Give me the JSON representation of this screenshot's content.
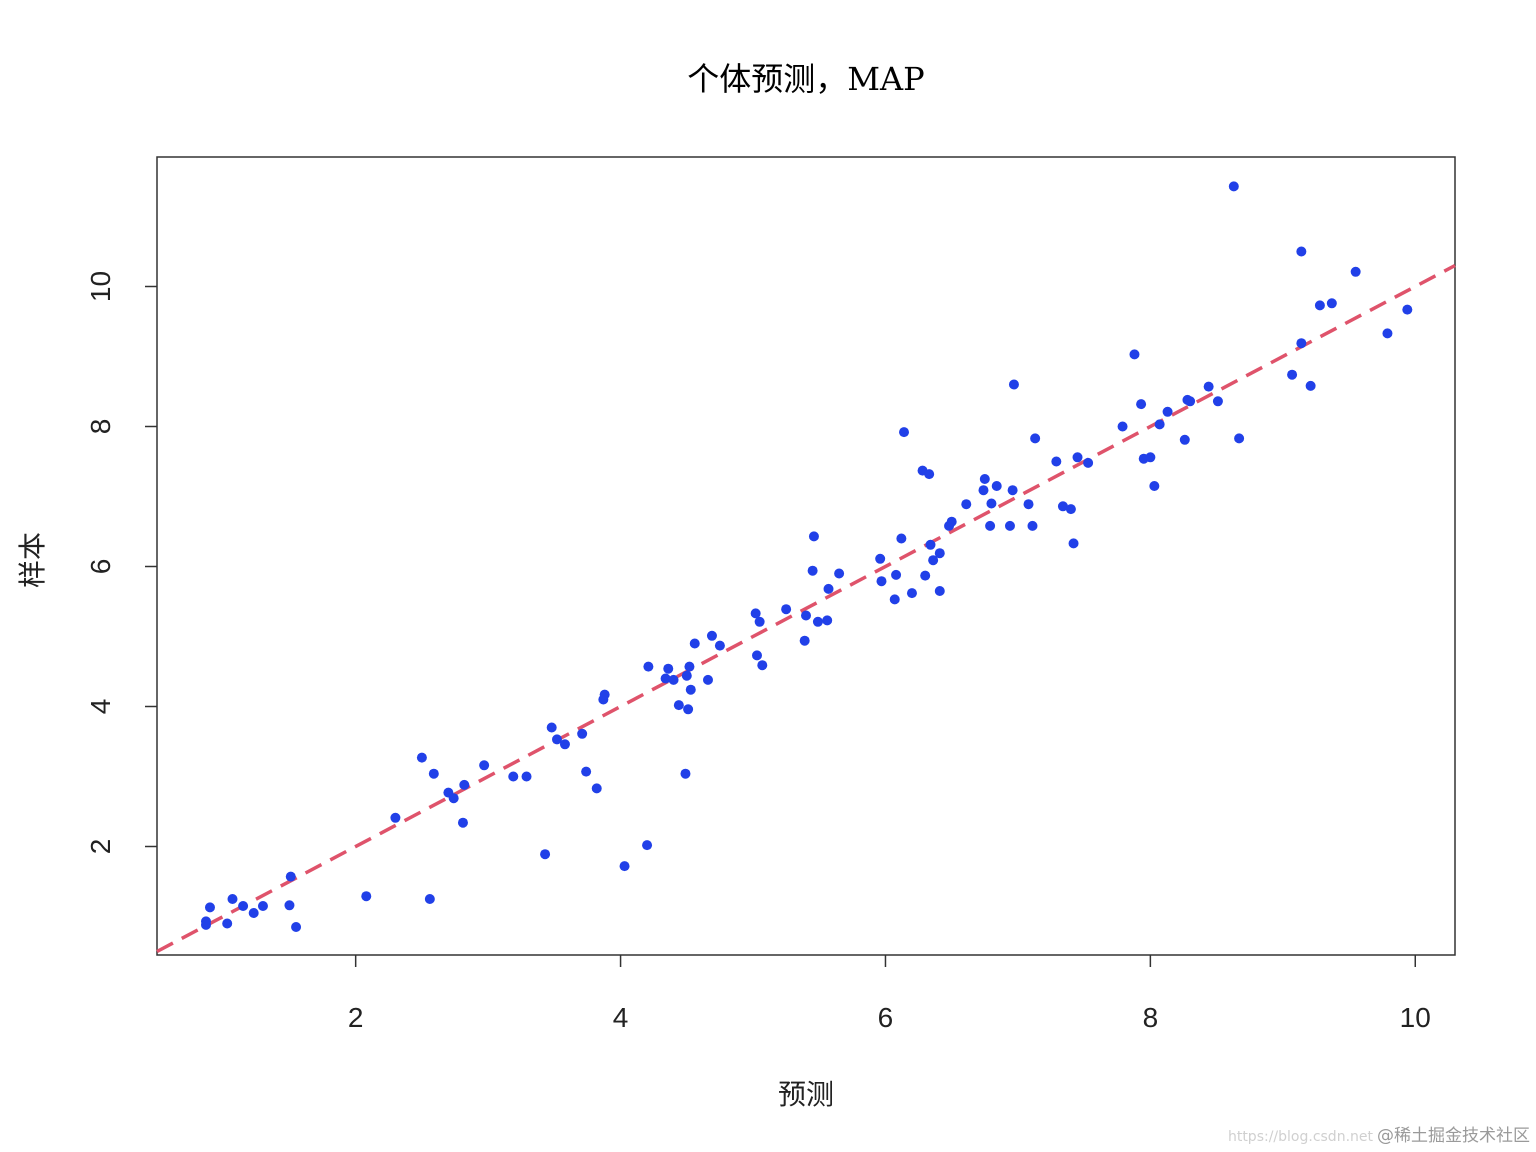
{
  "chart_data": {
    "type": "scatter",
    "title": "个体预测，MAP",
    "xlabel": "预测",
    "ylabel": "样本",
    "xlim": [
      0.5,
      10.3
    ],
    "ylim": [
      0.45,
      11.85
    ],
    "xticks": [
      2,
      4,
      6,
      8,
      10
    ],
    "yticks": [
      2,
      4,
      6,
      8,
      10
    ],
    "grid": false,
    "legend": "none",
    "point_color": "#2140e8",
    "line_color": "#df536b",
    "reference_line": {
      "slope": 1,
      "intercept": 0,
      "style": "dashed"
    },
    "points": [
      [
        0.87,
        0.88
      ],
      [
        0.87,
        0.93
      ],
      [
        0.9,
        1.13
      ],
      [
        1.03,
        0.9
      ],
      [
        1.07,
        1.25
      ],
      [
        1.15,
        1.15
      ],
      [
        1.23,
        1.05
      ],
      [
        1.3,
        1.15
      ],
      [
        1.5,
        1.16
      ],
      [
        1.51,
        1.57
      ],
      [
        1.55,
        0.85
      ],
      [
        2.08,
        1.29
      ],
      [
        2.3,
        2.41
      ],
      [
        2.5,
        3.27
      ],
      [
        2.56,
        1.25
      ],
      [
        2.59,
        3.04
      ],
      [
        2.7,
        2.77
      ],
      [
        2.74,
        2.69
      ],
      [
        2.81,
        2.34
      ],
      [
        2.82,
        2.88
      ],
      [
        2.97,
        3.16
      ],
      [
        3.19,
        3.0
      ],
      [
        3.29,
        3.0
      ],
      [
        3.43,
        1.89
      ],
      [
        3.48,
        3.7
      ],
      [
        3.52,
        3.53
      ],
      [
        3.58,
        3.46
      ],
      [
        3.71,
        3.61
      ],
      [
        3.74,
        3.07
      ],
      [
        3.82,
        2.83
      ],
      [
        3.87,
        4.1
      ],
      [
        3.88,
        4.17
      ],
      [
        4.03,
        1.72
      ],
      [
        4.2,
        2.02
      ],
      [
        4.21,
        4.57
      ],
      [
        4.34,
        4.4
      ],
      [
        4.36,
        4.54
      ],
      [
        4.4,
        4.38
      ],
      [
        4.44,
        4.02
      ],
      [
        4.49,
        3.04
      ],
      [
        4.5,
        4.44
      ],
      [
        4.51,
        3.96
      ],
      [
        4.52,
        4.57
      ],
      [
        4.53,
        4.24
      ],
      [
        4.56,
        4.9
      ],
      [
        4.66,
        4.38
      ],
      [
        4.69,
        5.01
      ],
      [
        4.75,
        4.87
      ],
      [
        5.02,
        5.33
      ],
      [
        5.03,
        4.73
      ],
      [
        5.05,
        5.21
      ],
      [
        5.07,
        4.59
      ],
      [
        5.25,
        5.39
      ],
      [
        5.39,
        4.94
      ],
      [
        5.4,
        5.3
      ],
      [
        5.45,
        5.94
      ],
      [
        5.46,
        6.43
      ],
      [
        5.49,
        5.21
      ],
      [
        5.56,
        5.23
      ],
      [
        5.57,
        5.68
      ],
      [
        5.65,
        5.9
      ],
      [
        5.96,
        6.11
      ],
      [
        5.97,
        5.79
      ],
      [
        6.07,
        5.53
      ],
      [
        6.08,
        5.88
      ],
      [
        6.12,
        6.4
      ],
      [
        6.14,
        7.92
      ],
      [
        6.2,
        5.62
      ],
      [
        6.28,
        7.37
      ],
      [
        6.3,
        5.87
      ],
      [
        6.33,
        7.32
      ],
      [
        6.34,
        6.31
      ],
      [
        6.36,
        6.09
      ],
      [
        6.41,
        6.19
      ],
      [
        6.41,
        5.65
      ],
      [
        6.48,
        6.58
      ],
      [
        6.5,
        6.64
      ],
      [
        6.61,
        6.89
      ],
      [
        6.74,
        7.09
      ],
      [
        6.75,
        7.25
      ],
      [
        6.79,
        6.58
      ],
      [
        6.8,
        6.9
      ],
      [
        6.84,
        7.15
      ],
      [
        6.94,
        6.58
      ],
      [
        6.96,
        7.09
      ],
      [
        6.97,
        8.6
      ],
      [
        7.08,
        6.89
      ],
      [
        7.11,
        6.58
      ],
      [
        7.13,
        7.83
      ],
      [
        7.29,
        7.5
      ],
      [
        7.34,
        6.86
      ],
      [
        7.4,
        6.82
      ],
      [
        7.42,
        6.33
      ],
      [
        7.45,
        7.56
      ],
      [
        7.53,
        7.48
      ],
      [
        7.79,
        8.0
      ],
      [
        7.88,
        9.03
      ],
      [
        7.93,
        8.32
      ],
      [
        7.95,
        7.54
      ],
      [
        8.0,
        7.56
      ],
      [
        8.03,
        7.15
      ],
      [
        8.07,
        8.03
      ],
      [
        8.13,
        8.21
      ],
      [
        8.26,
        7.81
      ],
      [
        8.28,
        8.38
      ],
      [
        8.3,
        8.36
      ],
      [
        8.44,
        8.57
      ],
      [
        8.51,
        8.36
      ],
      [
        8.63,
        11.43
      ],
      [
        8.67,
        7.83
      ],
      [
        9.07,
        8.74
      ],
      [
        9.14,
        9.19
      ],
      [
        9.14,
        10.5
      ],
      [
        9.21,
        8.58
      ],
      [
        9.28,
        9.73
      ],
      [
        9.37,
        9.76
      ],
      [
        9.55,
        10.21
      ],
      [
        9.79,
        9.33
      ],
      [
        9.94,
        9.67
      ]
    ]
  },
  "watermark": {
    "url": "https://blog.csdn.net",
    "text": "@稀土掘金技术社区"
  }
}
